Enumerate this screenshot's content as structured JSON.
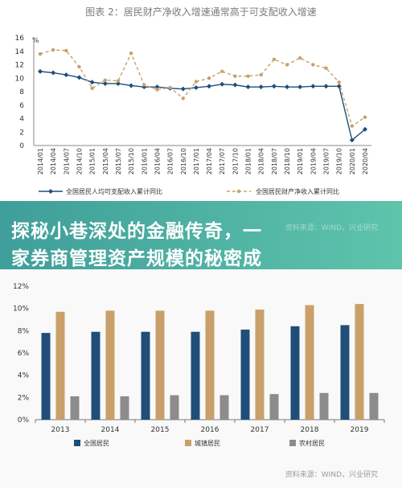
{
  "top_chart": {
    "title": "图表 2：居民财产净收入增速通常高于可支配收入增速",
    "y_unit": "%",
    "source": ""
  },
  "overlay": {
    "headline_line1": "探秘小巷深处的金融传奇，一",
    "headline_line2": "家券商管理资产规模的秘密成",
    "faded_source": "资料来源：WIND，兴业研究"
  },
  "bottom_chart": {
    "source": "资料来源：WIND，兴业研究"
  },
  "colors": {
    "navy": "#1f4e79",
    "tan": "#c9a06a",
    "gray": "#8c8c8c",
    "overlay_start": "#3f9e9a",
    "overlay_end": "#5ec4ab"
  },
  "chart_data": [
    {
      "type": "line",
      "title": "图表 2：居民财产净收入增速通常高于可支配收入增速",
      "ylabel": "%",
      "ylim": [
        0,
        16
      ],
      "yticks": [
        0,
        2,
        4,
        6,
        8,
        10,
        12,
        14,
        16
      ],
      "grid": false,
      "legend": "bottom",
      "x": [
        "2014/01",
        "2014/04",
        "2014/07",
        "2014/10",
        "2015/01",
        "2015/04",
        "2015/07",
        "2015/10",
        "2016/01",
        "2016/04",
        "2016/07",
        "2016/10",
        "2017/01",
        "2017/04",
        "2017/07",
        "2017/10",
        "2018/01",
        "2018/04",
        "2018/07",
        "2018/10",
        "2019/01",
        "2019/04",
        "2019/07",
        "2019/10",
        "2020/01",
        "2020/04"
      ],
      "series": [
        {
          "name": "全国居民人均可支配收入累计同比",
          "style": "solid",
          "values": [
            11.0,
            10.8,
            10.5,
            10.1,
            9.4,
            9.2,
            9.2,
            8.9,
            8.7,
            8.7,
            8.5,
            8.4,
            8.6,
            8.8,
            9.1,
            9.0,
            8.7,
            8.7,
            8.8,
            8.7,
            8.7,
            8.8,
            8.8,
            8.8,
            0.8,
            2.4
          ]
        },
        {
          "name": "全国居民财产净收入累计同比",
          "style": "dashed",
          "values": [
            13.6,
            14.2,
            14.1,
            11.7,
            8.5,
            9.7,
            9.6,
            13.7,
            9.0,
            8.3,
            8.6,
            7.0,
            9.5,
            10.0,
            11.0,
            10.3,
            10.3,
            10.5,
            12.8,
            12.0,
            13.0,
            12.0,
            11.5,
            9.4,
            2.9,
            4.2
          ]
        }
      ]
    },
    {
      "type": "bar",
      "title": "",
      "categories": [
        "2013",
        "2014",
        "2015",
        "2016",
        "2017",
        "2018",
        "2019"
      ],
      "ylim": [
        0,
        12
      ],
      "yticks": [
        "0%",
        "2%",
        "4%",
        "6%",
        "8%",
        "10%",
        "12%"
      ],
      "legend": "bottom",
      "grid": false,
      "series": [
        {
          "name": "全国居民",
          "values": [
            7.8,
            7.9,
            7.9,
            7.9,
            8.1,
            8.4,
            8.5
          ]
        },
        {
          "name": "城镇居民",
          "values": [
            9.7,
            9.8,
            9.8,
            9.8,
            9.9,
            10.3,
            10.4
          ]
        },
        {
          "name": "农村居民",
          "values": [
            2.1,
            2.1,
            2.2,
            2.2,
            2.3,
            2.4,
            2.4
          ]
        }
      ]
    }
  ]
}
